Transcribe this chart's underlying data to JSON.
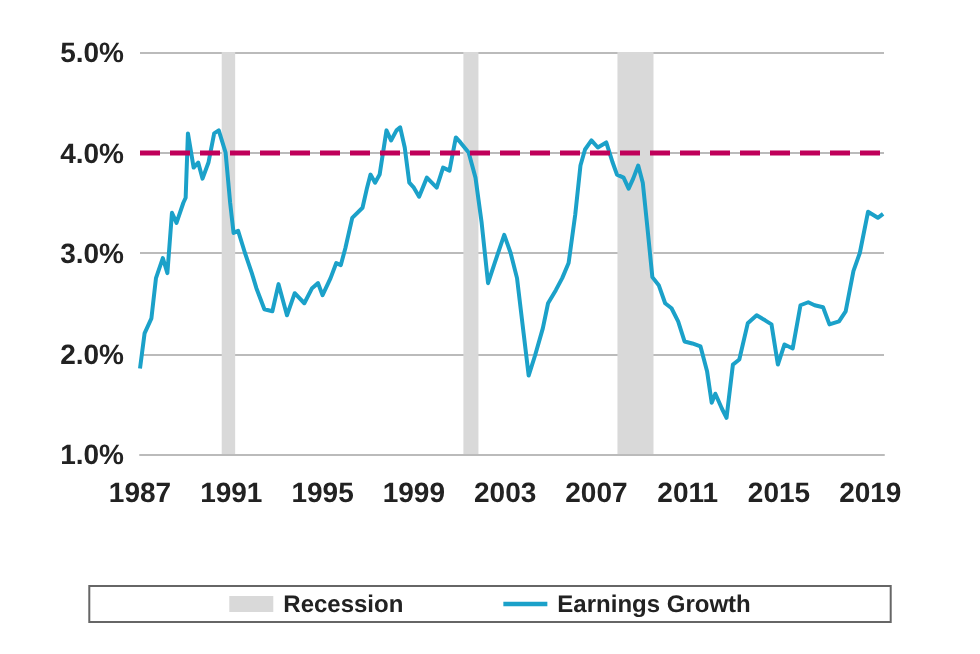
{
  "chart_data": {
    "type": "line",
    "x": [
      1987.0,
      1987.2,
      1987.5,
      1987.7,
      1988.0,
      1988.2,
      1988.4,
      1988.6,
      1988.9,
      1989.0,
      1989.1,
      1989.35,
      1989.55,
      1989.74,
      1990.0,
      1990.25,
      1990.45,
      1990.75,
      1990.95,
      1991.1,
      1991.3,
      1991.6,
      1991.9,
      1992.1,
      1992.45,
      1992.8,
      1993.07,
      1993.44,
      1993.78,
      1994.2,
      1994.54,
      1994.8,
      1995.0,
      1995.35,
      1995.6,
      1995.8,
      1996.0,
      1996.3,
      1996.75,
      1996.95,
      1997.1,
      1997.3,
      1997.5,
      1997.8,
      1998.0,
      1998.24,
      1998.4,
      1998.6,
      1998.8,
      1999.0,
      1999.23,
      1999.57,
      2000.0,
      2000.28,
      2000.56,
      2000.84,
      2001.04,
      2001.4,
      2001.7,
      2001.97,
      2002.25,
      2002.54,
      2002.96,
      2003.24,
      2003.52,
      2003.81,
      2004.03,
      2004.31,
      2004.65,
      2004.88,
      2005.22,
      2005.5,
      2005.78,
      2006.07,
      2006.3,
      2006.5,
      2006.78,
      2007.06,
      2007.43,
      2007.71,
      2007.9,
      2008.19,
      2008.41,
      2008.61,
      2008.83,
      2009.03,
      2009.23,
      2009.45,
      2009.73,
      2010.01,
      2010.29,
      2010.58,
      2010.86,
      2011.2,
      2011.56,
      2011.85,
      2012.05,
      2012.21,
      2012.5,
      2012.7,
      2012.98,
      2013.26,
      2013.63,
      2014.02,
      2014.39,
      2014.67,
      2014.95,
      2015.24,
      2015.6,
      2015.94,
      2016.28,
      2016.56,
      2016.93,
      2017.21,
      2017.63,
      2017.92,
      2018.26,
      2018.54,
      2018.9,
      2019.33,
      2019.56
    ],
    "series": [
      {
        "name": "Earnings Growth",
        "color": "#1ba1c9",
        "values": [
          1.85,
          2.2,
          2.35,
          2.75,
          2.95,
          2.8,
          3.4,
          3.3,
          3.5,
          3.55,
          4.19,
          3.85,
          3.9,
          3.74,
          3.9,
          4.19,
          4.22,
          4.0,
          3.5,
          3.2,
          3.22,
          3.0,
          2.8,
          2.65,
          2.44,
          2.42,
          2.69,
          2.38,
          2.6,
          2.5,
          2.65,
          2.7,
          2.58,
          2.75,
          2.9,
          2.88,
          3.05,
          3.35,
          3.45,
          3.65,
          3.78,
          3.7,
          3.78,
          4.22,
          4.12,
          4.22,
          4.25,
          4.05,
          3.7,
          3.65,
          3.56,
          3.75,
          3.65,
          3.85,
          3.82,
          4.15,
          4.1,
          4.0,
          3.75,
          3.3,
          2.7,
          2.9,
          3.18,
          3.0,
          2.75,
          2.2,
          1.78,
          1.98,
          2.25,
          2.5,
          2.63,
          2.75,
          2.9,
          3.38,
          3.87,
          4.03,
          4.12,
          4.05,
          4.1,
          3.9,
          3.78,
          3.75,
          3.64,
          3.74,
          3.87,
          3.7,
          3.26,
          2.76,
          2.68,
          2.5,
          2.45,
          2.32,
          2.12,
          2.1,
          2.07,
          1.82,
          1.51,
          1.6,
          1.45,
          1.36,
          1.89,
          1.94,
          2.3,
          2.38,
          2.33,
          2.29,
          1.89,
          2.09,
          2.05,
          2.48,
          2.51,
          2.48,
          2.46,
          2.29,
          2.32,
          2.42,
          2.82,
          3.0,
          3.41,
          3.35,
          3.39
        ]
      }
    ],
    "xlim": [
      1987,
      2019.6
    ],
    "xticks": [
      1987,
      1991,
      1995,
      1999,
      2003,
      2007,
      2011,
      2015,
      2019
    ],
    "ylim": [
      1,
      5
    ],
    "yticks": [
      {
        "value": 1,
        "label": "1.0%"
      },
      {
        "value": 2,
        "label": "2.0%"
      },
      {
        "value": 3,
        "label": "3.0%"
      },
      {
        "value": 4,
        "label": "4.0%"
      },
      {
        "value": 5,
        "label": "5.0%"
      }
    ],
    "ref_lines": [
      {
        "axis": "y",
        "value": 4,
        "label": null,
        "color": "#c0005a",
        "line_style": "dashed"
      }
    ],
    "bands": [
      {
        "axis": "x",
        "from": 1990.58,
        "to": 1991.17,
        "label": "Recession",
        "color": "#d9d9d9"
      },
      {
        "axis": "x",
        "from": 2001.17,
        "to": 2001.83,
        "color": "#d9d9d9"
      },
      {
        "axis": "x",
        "from": 2007.92,
        "to": 2009.5,
        "color": "#d9d9d9"
      }
    ],
    "grid": "y",
    "legend": "bottom",
    "marker": "none",
    "line_style": "solid"
  }
}
